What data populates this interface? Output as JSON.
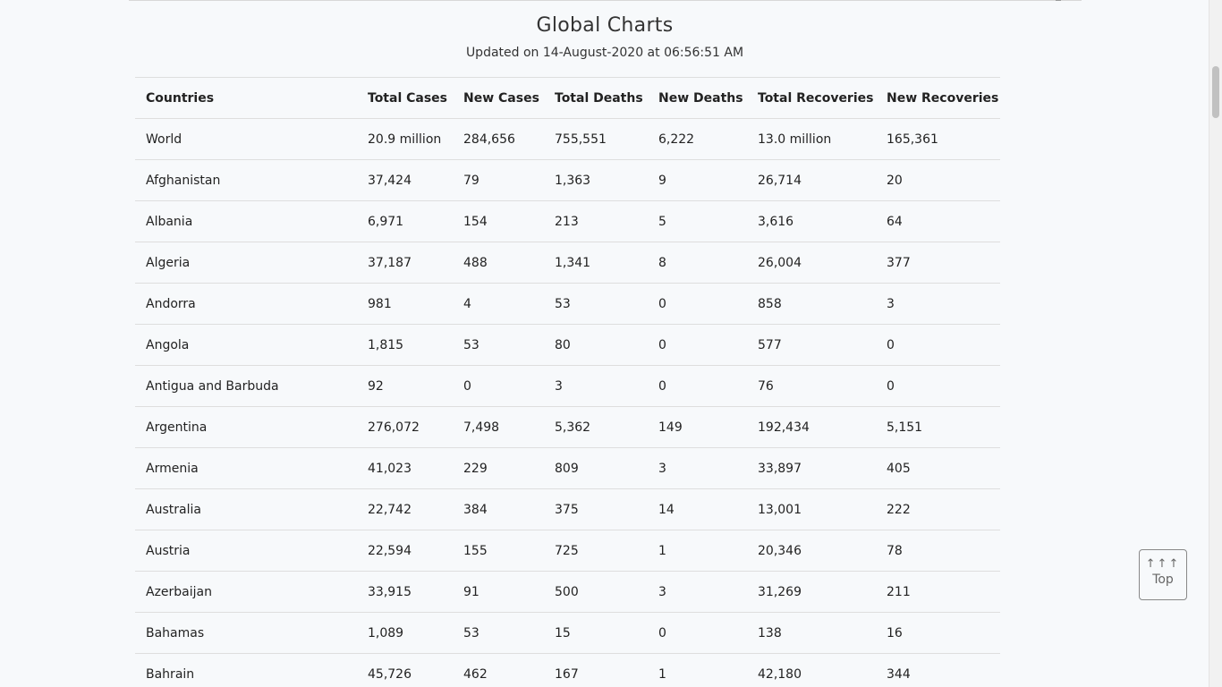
{
  "header": {
    "title": "Global Charts",
    "subtitle": "Updated on 14-August-2020 at 06:56:51 AM"
  },
  "table": {
    "columns": [
      "Countries",
      "Total Cases",
      "New Cases",
      "Total Deaths",
      "New Deaths",
      "Total Recoveries",
      "New Recoveries"
    ],
    "rows": [
      [
        "World",
        "20.9 million",
        "284,656",
        "755,551",
        "6,222",
        "13.0 million",
        "165,361"
      ],
      [
        "Afghanistan",
        "37,424",
        "79",
        "1,363",
        "9",
        "26,714",
        "20"
      ],
      [
        "Albania",
        "6,971",
        "154",
        "213",
        "5",
        "3,616",
        "64"
      ],
      [
        "Algeria",
        "37,187",
        "488",
        "1,341",
        "8",
        "26,004",
        "377"
      ],
      [
        "Andorra",
        "981",
        "4",
        "53",
        "0",
        "858",
        "3"
      ],
      [
        "Angola",
        "1,815",
        "53",
        "80",
        "0",
        "577",
        "0"
      ],
      [
        "Antigua and Barbuda",
        "92",
        "0",
        "3",
        "0",
        "76",
        "0"
      ],
      [
        "Argentina",
        "276,072",
        "7,498",
        "5,362",
        "149",
        "192,434",
        "5,151"
      ],
      [
        "Armenia",
        "41,023",
        "229",
        "809",
        "3",
        "33,897",
        "405"
      ],
      [
        "Australia",
        "22,742",
        "384",
        "375",
        "14",
        "13,001",
        "222"
      ],
      [
        "Austria",
        "22,594",
        "155",
        "725",
        "1",
        "20,346",
        "78"
      ],
      [
        "Azerbaijan",
        "33,915",
        "91",
        "500",
        "3",
        "31,269",
        "211"
      ],
      [
        "Bahamas",
        "1,089",
        "53",
        "15",
        "0",
        "138",
        "16"
      ],
      [
        "Bahrain",
        "45,726",
        "462",
        "167",
        "1",
        "42,180",
        "344"
      ]
    ]
  },
  "top_button": {
    "arrows": "↑↑↑",
    "label": "Top"
  }
}
